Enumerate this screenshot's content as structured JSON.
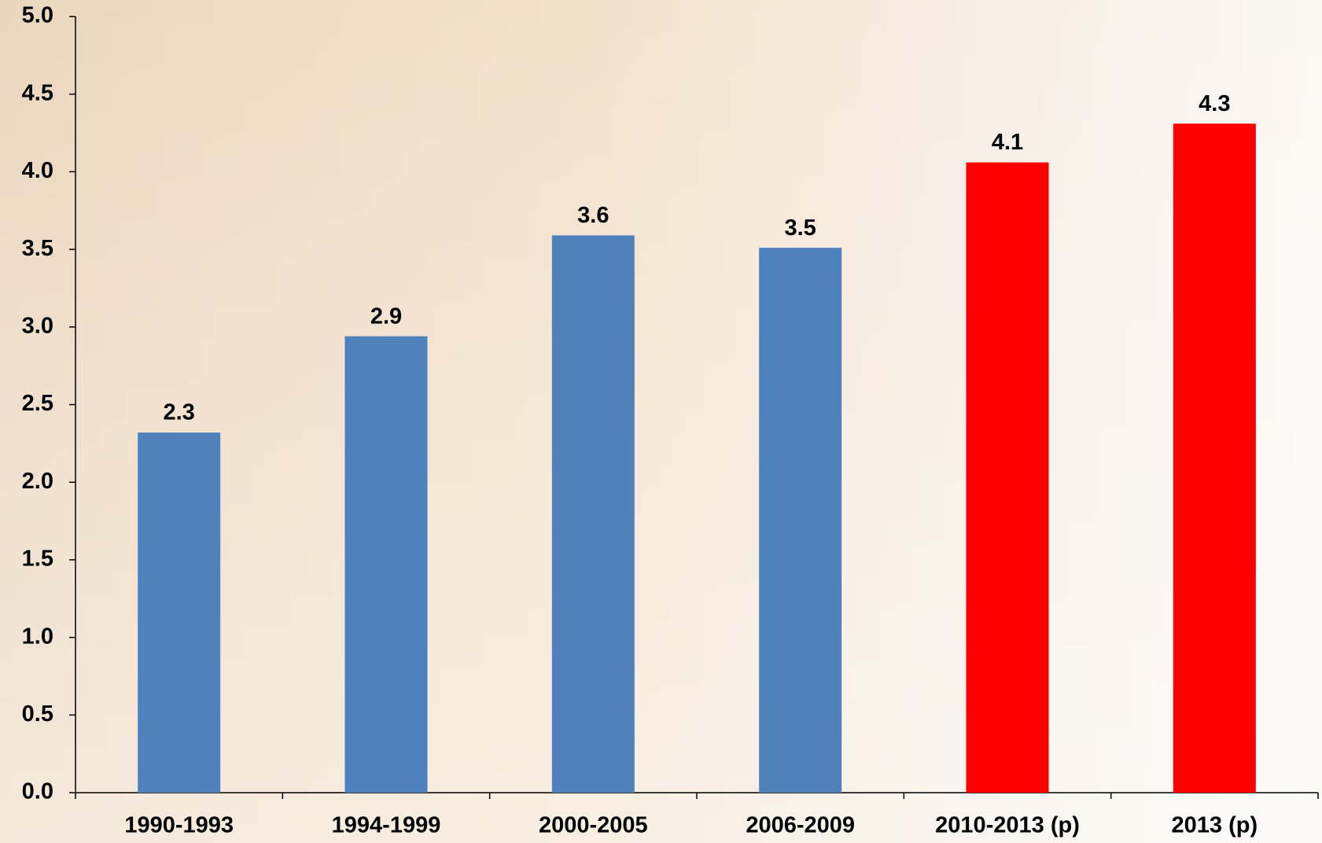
{
  "chart_data": {
    "type": "bar",
    "categories": [
      "1990-1993",
      "1994-1999",
      "2000-2005",
      "2006-2009",
      "2010-2013 (p)",
      "2013 (p)"
    ],
    "values": [
      2.32,
      2.94,
      3.59,
      3.51,
      4.06,
      4.31
    ],
    "value_labels": [
      "2.3",
      "2.9",
      "3.6",
      "3.5",
      "4.1",
      "4.3"
    ],
    "colors": [
      "#4f81bd",
      "#4f81bd",
      "#4f81bd",
      "#4f81bd",
      "#ff0000",
      "#ff0000"
    ],
    "ylim": [
      0,
      5
    ],
    "yticks": [
      {
        "value": 0,
        "label": "0.0"
      },
      0.5,
      {
        "value": 1,
        "label": "1.0"
      },
      1.5,
      {
        "value": 2,
        "label": "2.0"
      },
      2.5,
      {
        "value": 3,
        "label": "3.0"
      },
      3.5,
      {
        "value": 4,
        "label": "4.0"
      },
      4.5,
      {
        "value": 5,
        "label": "5.0"
      }
    ],
    "grid": false
  }
}
